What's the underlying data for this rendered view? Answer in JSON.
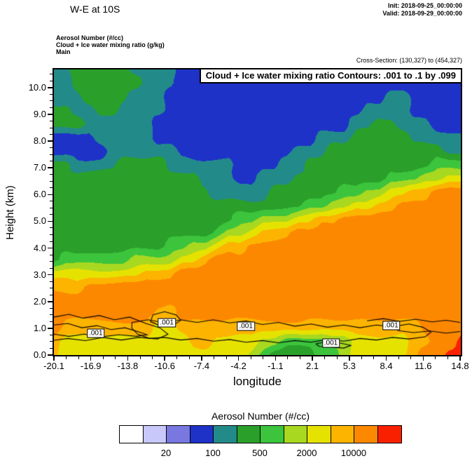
{
  "header": {
    "title": "W-E at 10S",
    "init_label": "Init: 2018-09-25_00:00:00",
    "valid_label": "Valid: 2018-09-29_00:00:00",
    "field_lines": [
      "Aerosol Number  (#/cc)",
      "Cloud + Ice water mixing ratio  (g/kg)",
      "Main"
    ],
    "cross_section_label": "Cross-Section: (130,327) to (454,327)"
  },
  "chart_data": {
    "type": "heatmap",
    "title": "Cloud + Ice water mixing ratio Contours: .001 to .1 by .099",
    "xlabel": "longitude",
    "ylabel": "Height (km)",
    "x_ticks": [
      "-20.1",
      "-16.9",
      "-13.8",
      "-10.6",
      "-7.4",
      "-4.2",
      "-1.1",
      "2.1",
      "5.3",
      "8.4",
      "11.6",
      "14.8"
    ],
    "y_ticks": [
      "0.0",
      "1.0",
      "2.0",
      "3.0",
      "4.0",
      "5.0",
      "6.0",
      "7.0",
      "8.0",
      "9.0",
      "10.0"
    ],
    "xlim": [
      -20.1,
      14.8
    ],
    "ylim_km": [
      0,
      10.68
    ],
    "fill_field": "Aerosol Number (#/cc)",
    "fill_level_edges": [
      10,
      20,
      50,
      100,
      200,
      500,
      1000,
      2000,
      5000,
      10000,
      20000
    ],
    "fill_colors": [
      "#ffffff",
      "#c8c8fa",
      "#7878e0",
      "#1e32c8",
      "#238a8a",
      "#2aa02a",
      "#3cc43c",
      "#a8d820",
      "#e6e200",
      "#fcb400",
      "#fc8800",
      "#f92000"
    ],
    "grid": {
      "note": "aerosol number as color-level indices 0-11; rows run top (10.68 km) to bottom (0 km); cols run lon -20.1 to 14.8",
      "nrows": 22,
      "ncols": 36,
      "values": [
        [
          4,
          4,
          5,
          5,
          5,
          5,
          5,
          4,
          4,
          4,
          4,
          3,
          3,
          3,
          3,
          3,
          3,
          3,
          3,
          3,
          3,
          3,
          3,
          3,
          3,
          3,
          3,
          3,
          3,
          3,
          3,
          3,
          3,
          3,
          3,
          3
        ],
        [
          4,
          4,
          5,
          5,
          5,
          5,
          5,
          5,
          4,
          4,
          4,
          3,
          3,
          3,
          3,
          3,
          3,
          3,
          3,
          3,
          3,
          3,
          3,
          3,
          3,
          3,
          3,
          3,
          3,
          3,
          3,
          3,
          3,
          3,
          3,
          3
        ],
        [
          4,
          4,
          4,
          5,
          5,
          5,
          5,
          4,
          4,
          4,
          3,
          3,
          3,
          3,
          3,
          3,
          3,
          3,
          3,
          3,
          3,
          3,
          3,
          3,
          3,
          3,
          3,
          3,
          3,
          4,
          4,
          3,
          3,
          3,
          3,
          3
        ],
        [
          5,
          5,
          4,
          4,
          5,
          5,
          4,
          4,
          4,
          4,
          3,
          3,
          3,
          3,
          3,
          3,
          3,
          3,
          3,
          3,
          3,
          3,
          3,
          3,
          3,
          3,
          3,
          4,
          4,
          4,
          4,
          3,
          3,
          3,
          3,
          3
        ],
        [
          5,
          5,
          5,
          4,
          4,
          4,
          4,
          4,
          4,
          3,
          3,
          3,
          3,
          3,
          3,
          3,
          3,
          3,
          3,
          3,
          3,
          3,
          3,
          3,
          3,
          3,
          4,
          4,
          5,
          5,
          4,
          4,
          4,
          3,
          3,
          3
        ],
        [
          3,
          3,
          3,
          3,
          4,
          4,
          4,
          4,
          4,
          3,
          3,
          3,
          3,
          3,
          3,
          3,
          3,
          3,
          3,
          3,
          3,
          3,
          3,
          4,
          4,
          4,
          5,
          5,
          5,
          5,
          5,
          4,
          4,
          4,
          4,
          4
        ],
        [
          3,
          3,
          3,
          3,
          3,
          4,
          4,
          4,
          4,
          4,
          4,
          3,
          3,
          3,
          3,
          3,
          3,
          3,
          3,
          3,
          3,
          4,
          4,
          4,
          5,
          5,
          5,
          5,
          5,
          5,
          5,
          5,
          5,
          5,
          4,
          4
        ],
        [
          5,
          5,
          4,
          4,
          4,
          4,
          5,
          5,
          5,
          5,
          4,
          4,
          4,
          4,
          4,
          4,
          3,
          3,
          3,
          3,
          4,
          4,
          5,
          5,
          5,
          5,
          5,
          5,
          5,
          5,
          5,
          5,
          5,
          6,
          6,
          6
        ],
        [
          5,
          5,
          5,
          5,
          5,
          5,
          5,
          5,
          5,
          5,
          5,
          5,
          5,
          4,
          4,
          4,
          3,
          3,
          4,
          4,
          4,
          5,
          5,
          5,
          5,
          5,
          5,
          5,
          5,
          6,
          6,
          6,
          7,
          7,
          8,
          8
        ],
        [
          5,
          5,
          5,
          5,
          5,
          5,
          5,
          5,
          5,
          5,
          5,
          5,
          5,
          5,
          4,
          4,
          4,
          4,
          4,
          5,
          5,
          5,
          5,
          5,
          5,
          6,
          6,
          7,
          7,
          8,
          8,
          9,
          9,
          10,
          10,
          10
        ],
        [
          5,
          5,
          5,
          5,
          5,
          5,
          5,
          5,
          5,
          5,
          5,
          5,
          5,
          5,
          5,
          5,
          5,
          5,
          5,
          5,
          5,
          5,
          6,
          6,
          7,
          7,
          8,
          8,
          9,
          9,
          10,
          10,
          10,
          10,
          10,
          10
        ],
        [
          5,
          5,
          5,
          5,
          5,
          5,
          5,
          5,
          5,
          5,
          5,
          5,
          5,
          5,
          5,
          5,
          6,
          6,
          7,
          7,
          7,
          8,
          8,
          9,
          9,
          10,
          10,
          10,
          10,
          10,
          10,
          10,
          10,
          10,
          10,
          10
        ],
        [
          5,
          5,
          5,
          5,
          5,
          5,
          5,
          5,
          5,
          5,
          5,
          5,
          5,
          5,
          6,
          7,
          7,
          8,
          9,
          9,
          9,
          10,
          10,
          10,
          10,
          10,
          10,
          10,
          10,
          10,
          10,
          10,
          10,
          10,
          10,
          10
        ],
        [
          5,
          5,
          5,
          5,
          5,
          5,
          5,
          5,
          5,
          5,
          6,
          6,
          7,
          7,
          8,
          9,
          9,
          10,
          10,
          10,
          10,
          10,
          10,
          10,
          10,
          10,
          10,
          10,
          10,
          10,
          10,
          10,
          10,
          10,
          10,
          10
        ],
        [
          5,
          6,
          6,
          6,
          6,
          6,
          6,
          7,
          7,
          7,
          7,
          8,
          8,
          9,
          10,
          10,
          10,
          10,
          10,
          10,
          10,
          10,
          10,
          10,
          10,
          10,
          10,
          10,
          10,
          10,
          10,
          10,
          10,
          10,
          10,
          10
        ],
        [
          8,
          8,
          8,
          8,
          8,
          8,
          8,
          8,
          9,
          9,
          9,
          10,
          10,
          10,
          10,
          10,
          10,
          10,
          10,
          10,
          10,
          10,
          10,
          10,
          10,
          10,
          10,
          10,
          10,
          10,
          10,
          10,
          10,
          10,
          10,
          10
        ],
        [
          9,
          9,
          9,
          10,
          10,
          10,
          10,
          10,
          10,
          10,
          10,
          10,
          10,
          10,
          10,
          10,
          10,
          10,
          10,
          10,
          10,
          10,
          10,
          10,
          10,
          10,
          10,
          10,
          10,
          10,
          10,
          10,
          10,
          10,
          10,
          10
        ],
        [
          10,
          10,
          10,
          10,
          10,
          10,
          10,
          10,
          10,
          10,
          10,
          10,
          10,
          10,
          10,
          10,
          10,
          10,
          10,
          10,
          10,
          10,
          10,
          10,
          10,
          10,
          10,
          10,
          10,
          10,
          10,
          10,
          10,
          10,
          10,
          10
        ],
        [
          10,
          10,
          10,
          10,
          10,
          10,
          10,
          10,
          10,
          9,
          9,
          10,
          10,
          10,
          10,
          10,
          10,
          10,
          10,
          10,
          10,
          10,
          10,
          10,
          10,
          10,
          10,
          10,
          10,
          10,
          10,
          10,
          10,
          10,
          10,
          10
        ],
        [
          10,
          9,
          9,
          9,
          9,
          9,
          9,
          9,
          9,
          8,
          8,
          9,
          9,
          9,
          9,
          9,
          9,
          9,
          9,
          9,
          9,
          9,
          9,
          9,
          9,
          9,
          9,
          9,
          9,
          9,
          9,
          9,
          10,
          10,
          10,
          10
        ],
        [
          9,
          8,
          8,
          8,
          8,
          8,
          8,
          8,
          8,
          8,
          8,
          8,
          9,
          9,
          8,
          8,
          8,
          8,
          7,
          7,
          6,
          6,
          6,
          6,
          7,
          7,
          8,
          8,
          8,
          8,
          8,
          9,
          9,
          10,
          10,
          11
        ],
        [
          9,
          8,
          8,
          8,
          8,
          8,
          8,
          8,
          8,
          8,
          8,
          8,
          8,
          8,
          8,
          8,
          8,
          7,
          6,
          5,
          5,
          5,
          5,
          6,
          6,
          7,
          8,
          8,
          8,
          8,
          8,
          9,
          10,
          10,
          11,
          11
        ]
      ]
    },
    "contour_overlay": {
      "field": "Cloud + Ice water mixing ratio (g/kg)",
      "label": ".001",
      "label_positions_lon_km": [
        [
          -16.5,
          0.82
        ],
        [
          -10.4,
          1.22
        ],
        [
          -3.6,
          1.08
        ],
        [
          3.7,
          0.44
        ],
        [
          8.9,
          1.1
        ]
      ],
      "paths_lon_km": [
        [
          [
            -20.1,
            1.42
          ],
          [
            -18.8,
            1.52
          ],
          [
            -17.6,
            1.38
          ],
          [
            -16.2,
            1.48
          ],
          [
            -14.9,
            1.32
          ],
          [
            -13.6,
            1.42
          ],
          [
            -12.2,
            1.18
          ],
          [
            -11.0,
            1.02
          ],
          [
            -10.3,
            0.78
          ],
          [
            -11.2,
            0.6
          ],
          [
            -12.8,
            0.66
          ],
          [
            -14.3,
            0.56
          ],
          [
            -15.9,
            0.66
          ],
          [
            -17.4,
            0.54
          ],
          [
            -18.9,
            0.62
          ],
          [
            -20.1,
            0.55
          ]
        ],
        [
          [
            -20.1,
            1.12
          ],
          [
            -18.9,
            1.18
          ],
          [
            -17.7,
            1.02
          ],
          [
            -16.4,
            1.1
          ],
          [
            -15.2,
            0.95
          ],
          [
            -14.0,
            1.02
          ],
          [
            -12.9,
            0.88
          ],
          [
            -12.1,
            0.76
          ],
          [
            -13.0,
            0.7
          ],
          [
            -14.5,
            0.76
          ],
          [
            -16.0,
            0.68
          ],
          [
            -17.5,
            0.78
          ],
          [
            -18.8,
            0.7
          ],
          [
            -20.1,
            0.78
          ]
        ],
        [
          [
            -13.4,
            1.22
          ],
          [
            -12.0,
            1.32
          ],
          [
            -10.6,
            1.2
          ],
          [
            -9.2,
            1.32
          ],
          [
            -7.8,
            1.22
          ],
          [
            -6.4,
            1.32
          ],
          [
            -5.0,
            1.2
          ],
          [
            -3.6,
            1.28
          ],
          [
            -2.2,
            1.14
          ],
          [
            -0.8,
            1.22
          ],
          [
            0.6,
            1.08
          ],
          [
            2.0,
            1.16
          ],
          [
            3.4,
            1.04
          ],
          [
            4.8,
            1.12
          ],
          [
            6.2,
            1.02
          ],
          [
            7.6,
            1.12
          ],
          [
            9.0,
            1.06
          ],
          [
            10.4,
            1.16
          ],
          [
            11.6,
            1.04
          ],
          [
            12.3,
            0.86
          ],
          [
            11.8,
            0.68
          ],
          [
            10.4,
            0.6
          ],
          [
            9.0,
            0.66
          ],
          [
            7.6,
            0.56
          ],
          [
            6.2,
            0.62
          ],
          [
            4.8,
            0.52
          ],
          [
            3.4,
            0.58
          ],
          [
            2.0,
            0.48
          ],
          [
            0.6,
            0.54
          ],
          [
            -0.8,
            0.46
          ],
          [
            -2.2,
            0.54
          ],
          [
            -3.6,
            0.48
          ],
          [
            -5.0,
            0.58
          ],
          [
            -6.4,
            0.52
          ],
          [
            -7.8,
            0.62
          ],
          [
            -9.2,
            0.56
          ],
          [
            -10.6,
            0.66
          ],
          [
            -11.9,
            0.62
          ],
          [
            -12.9,
            0.78
          ],
          [
            -13.4,
            1.0
          ],
          [
            -13.4,
            1.22
          ]
        ],
        [
          [
            2.4,
            0.42
          ],
          [
            3.4,
            0.5
          ],
          [
            4.6,
            0.44
          ],
          [
            5.4,
            0.36
          ],
          [
            4.8,
            0.26
          ],
          [
            3.6,
            0.3
          ],
          [
            2.7,
            0.32
          ],
          [
            2.4,
            0.42
          ]
        ],
        [
          [
            6.8,
            1.28
          ],
          [
            8.2,
            1.36
          ],
          [
            9.6,
            1.26
          ],
          [
            11.0,
            1.34
          ],
          [
            12.4,
            1.24
          ],
          [
            13.6,
            1.3
          ],
          [
            14.8,
            1.22
          ]
        ],
        [
          [
            9.4,
            0.92
          ],
          [
            10.8,
            0.84
          ],
          [
            12.2,
            0.9
          ],
          [
            13.6,
            0.82
          ],
          [
            14.8,
            0.88
          ]
        ],
        [
          [
            -11.6,
            1.5
          ],
          [
            -10.6,
            1.62
          ],
          [
            -9.6,
            1.5
          ],
          [
            -9.2,
            1.3
          ],
          [
            -9.8,
            1.12
          ],
          [
            -11.0,
            1.1
          ],
          [
            -11.8,
            1.25
          ],
          [
            -11.6,
            1.5
          ]
        ]
      ]
    },
    "colorbar": {
      "title": "Aerosol Number  (#/cc)",
      "tick_labels": [
        "20",
        "100",
        "500",
        "2000",
        "10000"
      ],
      "tick_edge_indices": [
        2,
        4,
        6,
        8,
        10
      ]
    }
  }
}
